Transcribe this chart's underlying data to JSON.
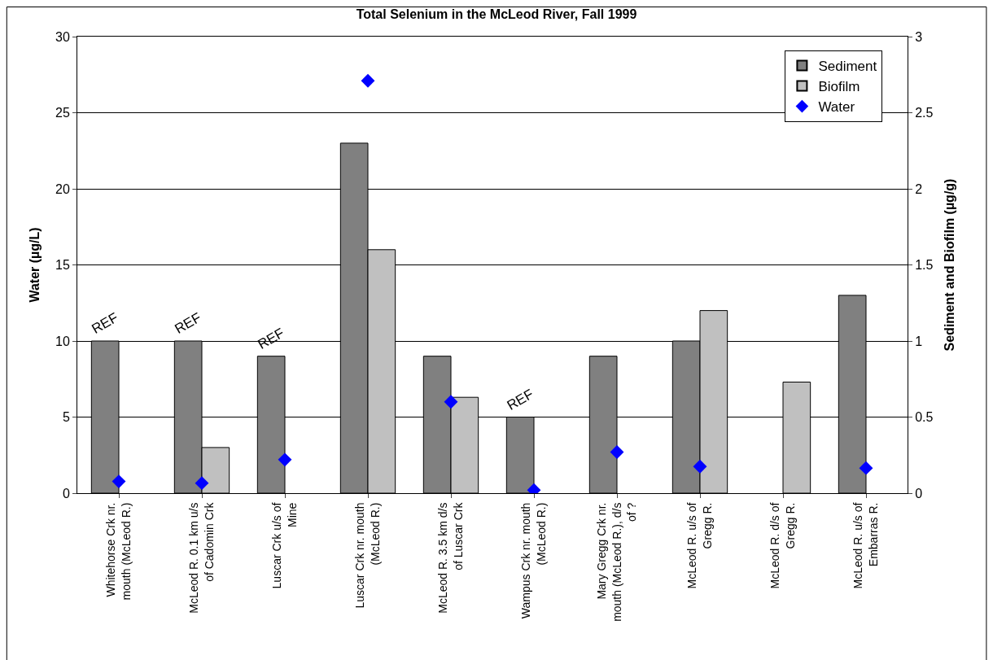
{
  "chart_data": {
    "type": "bar",
    "title": "Total Selenium in the McLeod River, Fall 1999",
    "ylabel": "Water (µg/L)",
    "y2label": "Sediment and Biofilm (µg/g)",
    "categories": [
      "Whitehorse Crk nr.\nmouth (McLeod R.)",
      "McLeod R. 0.1 km u/s\nof Cadomin Crk",
      "Luscar Crk u/s of\nMine",
      "Luscar Crk nr. mouth\n(McLeod R.)",
      "McLeod R. 3.5 km d/s\nof Luscar Crk",
      "Wampus Crk nr. mouth\n(McLeod R.)",
      "Mary Gregg Crk nr.\nmouth (McLeod R.), d/s\nof ?",
      "McLeod R. u/s of\nGregg R.",
      "McLeod R. d/s of\nGregg R.",
      "McLeod R. u/s of\nEmbarras R."
    ],
    "series": [
      {
        "name": "Sediment",
        "axis": "y2",
        "color": "#808080",
        "values": [
          1.0,
          1.0,
          0.9,
          2.3,
          0.9,
          0.5,
          0.9,
          1.0,
          null,
          1.3
        ]
      },
      {
        "name": "Biofilm",
        "axis": "y2",
        "color": "#c0c0c0",
        "values": [
          null,
          0.3,
          null,
          1.6,
          0.63,
          null,
          null,
          1.2,
          0.73,
          null
        ]
      },
      {
        "name": "Water",
        "type": "scatter",
        "axis": "y",
        "color": "#0000ff",
        "marker": "diamond",
        "values": [
          0.77,
          0.66,
          2.2,
          27.1,
          6.0,
          0.2,
          2.7,
          1.75,
          null,
          1.65
        ]
      }
    ],
    "ylim": [
      0,
      30
    ],
    "yticks": [
      0,
      5,
      10,
      15,
      20,
      25,
      30
    ],
    "y2lim": [
      0,
      3
    ],
    "y2ticks": [
      0,
      0.5,
      1,
      1.5,
      2,
      2.5,
      3
    ],
    "grid": "y",
    "legend": "top right",
    "annotations": [
      {
        "text": "REF",
        "x": "Whitehorse Crk nr.\nmouth (McLeod R.)",
        "y": 10
      },
      {
        "text": "REF",
        "x": "McLeod R. 0.1 km u/s\nof Cadomin Crk",
        "y": 10
      },
      {
        "text": "REF",
        "x": "Luscar Crk u/s of\nMine",
        "y": 9
      },
      {
        "text": "REF",
        "x": "Wampus Crk nr. mouth\n(McLeod R.)",
        "y": 5
      }
    ]
  }
}
